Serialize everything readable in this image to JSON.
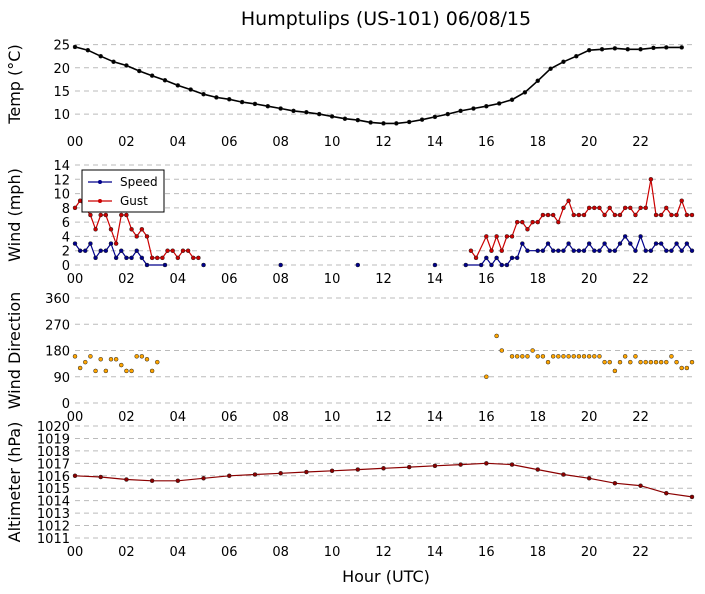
{
  "figure": {
    "title": "Humptulips (US-101) 06/08/15",
    "xlabel": "Hour (UTC)"
  },
  "x_ticks": [
    "00",
    "02",
    "04",
    "06",
    "08",
    "10",
    "12",
    "14",
    "16",
    "18",
    "20",
    "22"
  ],
  "colors": {
    "temp": "#000000",
    "speed": "#00008b",
    "gust": "#cc0000",
    "direction": "#ffa500",
    "altimeter": "#8b0000",
    "grid": "#bbbbbb"
  },
  "chart_data": [
    {
      "type": "line",
      "title": "Humptulips (US-101) 06/08/15",
      "ylabel": "Temp (°C)",
      "xlabel": "",
      "xlim": [
        0,
        24
      ],
      "ylim": [
        7,
        26
      ],
      "yticks": [
        10,
        15,
        20,
        25
      ],
      "grid": true,
      "series": [
        {
          "points": [
            [
              0,
              24.5
            ],
            [
              0.5,
              23.8
            ],
            [
              1,
              22.5
            ],
            [
              1.5,
              21.3
            ],
            [
              2,
              20.5
            ],
            [
              2.5,
              19.3
            ],
            [
              3,
              18.3
            ],
            [
              3.5,
              17.3
            ],
            [
              4,
              16.2
            ],
            [
              4.5,
              15.3
            ],
            [
              5,
              14.3
            ],
            [
              5.5,
              13.6
            ],
            [
              6,
              13.2
            ],
            [
              6.5,
              12.6
            ],
            [
              7,
              12.2
            ],
            [
              7.5,
              11.7
            ],
            [
              8,
              11.2
            ],
            [
              8.5,
              10.7
            ],
            [
              9,
              10.4
            ],
            [
              9.5,
              10.0
            ],
            [
              10,
              9.5
            ],
            [
              10.5,
              9.0
            ],
            [
              11,
              8.7
            ],
            [
              11.5,
              8.2
            ],
            [
              12,
              8.0
            ],
            [
              12.5,
              8.0
            ],
            [
              13,
              8.3
            ],
            [
              13.5,
              8.8
            ],
            [
              14,
              9.4
            ],
            [
              14.5,
              10.0
            ],
            [
              15,
              10.7
            ],
            [
              15.5,
              11.2
            ],
            [
              16,
              11.7
            ],
            [
              16.5,
              12.3
            ],
            [
              17,
              13.1
            ],
            [
              17.5,
              14.7
            ],
            [
              18,
              17.2
            ],
            [
              18.5,
              19.8
            ],
            [
              19,
              21.3
            ],
            [
              19.5,
              22.5
            ],
            [
              20,
              23.8
            ],
            [
              20.5,
              24.0
            ],
            [
              21,
              24.2
            ],
            [
              21.5,
              24.0
            ],
            [
              22,
              24.0
            ],
            [
              22.5,
              24.3
            ],
            [
              23,
              24.4
            ],
            [
              23.6,
              24.4
            ]
          ]
        }
      ]
    },
    {
      "type": "line",
      "ylabel": "Wind (mph)",
      "xlim": [
        0,
        24
      ],
      "ylim": [
        0,
        14
      ],
      "yticks": [
        0,
        2,
        4,
        6,
        8,
        10,
        12,
        14
      ],
      "grid": true,
      "legend": "top-left",
      "series": [
        {
          "name": "Speed",
          "points": [
            [
              0,
              3
            ],
            [
              0.2,
              2
            ],
            [
              0.4,
              2
            ],
            [
              0.6,
              3
            ],
            [
              0.8,
              1
            ],
            [
              1,
              2
            ],
            [
              1.2,
              2
            ],
            [
              1.4,
              3
            ],
            [
              1.6,
              1
            ],
            [
              1.8,
              2
            ],
            [
              2,
              1
            ],
            [
              2.2,
              1
            ],
            [
              2.4,
              2
            ],
            [
              2.6,
              1
            ],
            [
              2.8,
              0
            ],
            [
              3.5,
              0
            ],
            [
              5,
              0
            ],
            [
              8,
              0
            ],
            [
              11,
              0
            ],
            [
              14,
              0
            ],
            [
              15.2,
              0
            ],
            [
              15.8,
              0
            ],
            [
              16,
              1
            ],
            [
              16.2,
              0
            ],
            [
              16.4,
              1
            ],
            [
              16.6,
              0
            ],
            [
              16.8,
              0
            ],
            [
              17,
              1
            ],
            [
              17.2,
              1
            ],
            [
              17.4,
              3
            ],
            [
              17.6,
              2
            ],
            [
              18,
              2
            ],
            [
              18.2,
              2
            ],
            [
              18.4,
              3
            ],
            [
              18.6,
              2
            ],
            [
              18.8,
              2
            ],
            [
              19,
              2
            ],
            [
              19.2,
              3
            ],
            [
              19.4,
              2
            ],
            [
              19.6,
              2
            ],
            [
              19.8,
              2
            ],
            [
              20,
              3
            ],
            [
              20.2,
              2
            ],
            [
              20.4,
              2
            ],
            [
              20.6,
              3
            ],
            [
              20.8,
              2
            ],
            [
              21,
              2
            ],
            [
              21.2,
              3
            ],
            [
              21.4,
              4
            ],
            [
              21.6,
              3
            ],
            [
              21.8,
              2
            ],
            [
              22,
              4
            ],
            [
              22.2,
              2
            ],
            [
              22.4,
              2
            ],
            [
              22.6,
              3
            ],
            [
              22.8,
              3
            ],
            [
              23,
              2
            ],
            [
              23.2,
              2
            ],
            [
              23.4,
              3
            ],
            [
              23.6,
              2
            ],
            [
              23.8,
              3
            ],
            [
              24,
              2
            ]
          ]
        },
        {
          "name": "Gust",
          "points": [
            [
              0,
              8
            ],
            [
              0.2,
              9
            ],
            [
              0.4,
              8
            ],
            [
              0.6,
              7
            ],
            [
              0.8,
              5
            ],
            [
              1,
              7
            ],
            [
              1.2,
              7
            ],
            [
              1.4,
              5
            ],
            [
              1.6,
              3
            ],
            [
              1.8,
              7
            ],
            [
              2,
              7
            ],
            [
              2.2,
              5
            ],
            [
              2.4,
              4
            ],
            [
              2.6,
              5
            ],
            [
              2.8,
              4
            ],
            [
              3,
              1
            ],
            [
              3.2,
              1
            ],
            [
              3.4,
              1
            ],
            [
              3.6,
              2
            ],
            [
              3.8,
              2
            ],
            [
              4,
              1
            ],
            [
              4.2,
              2
            ],
            [
              4.4,
              2
            ],
            [
              4.6,
              1
            ],
            [
              4.8,
              1
            ],
            [
              15.4,
              2
            ],
            [
              15.6,
              1
            ],
            [
              16,
              4
            ],
            [
              16.2,
              2
            ],
            [
              16.4,
              4
            ],
            [
              16.6,
              2
            ],
            [
              16.8,
              4
            ],
            [
              17,
              4
            ],
            [
              17.2,
              6
            ],
            [
              17.4,
              6
            ],
            [
              17.6,
              5
            ],
            [
              17.8,
              6
            ],
            [
              18,
              6
            ],
            [
              18.2,
              7
            ],
            [
              18.4,
              7
            ],
            [
              18.6,
              7
            ],
            [
              18.8,
              6
            ],
            [
              19,
              8
            ],
            [
              19.2,
              9
            ],
            [
              19.4,
              7
            ],
            [
              19.6,
              7
            ],
            [
              19.8,
              7
            ],
            [
              20,
              8
            ],
            [
              20.2,
              8
            ],
            [
              20.4,
              8
            ],
            [
              20.6,
              7
            ],
            [
              20.8,
              8
            ],
            [
              21,
              7
            ],
            [
              21.2,
              7
            ],
            [
              21.4,
              8
            ],
            [
              21.6,
              8
            ],
            [
              21.8,
              7
            ],
            [
              22,
              8
            ],
            [
              22.2,
              8
            ],
            [
              22.4,
              12
            ],
            [
              22.6,
              7
            ],
            [
              22.8,
              7
            ],
            [
              23,
              8
            ],
            [
              23.2,
              7
            ],
            [
              23.4,
              7
            ],
            [
              23.6,
              9
            ],
            [
              23.8,
              7
            ],
            [
              24,
              7
            ]
          ]
        }
      ]
    },
    {
      "type": "scatter",
      "ylabel": "Wind Direction",
      "xlim": [
        0,
        24
      ],
      "ylim": [
        0,
        360
      ],
      "yticks": [
        0,
        90,
        180,
        270,
        360
      ],
      "grid": true,
      "series": [
        {
          "points": [
            [
              0,
              160
            ],
            [
              0.2,
              120
            ],
            [
              0.4,
              140
            ],
            [
              0.6,
              160
            ],
            [
              0.8,
              110
            ],
            [
              1,
              150
            ],
            [
              1.2,
              110
            ],
            [
              1.4,
              150
            ],
            [
              1.6,
              150
            ],
            [
              1.8,
              130
            ],
            [
              2,
              110
            ],
            [
              2.2,
              110
            ],
            [
              2.4,
              160
            ],
            [
              2.6,
              160
            ],
            [
              2.8,
              150
            ],
            [
              3,
              110
            ],
            [
              3.2,
              140
            ],
            [
              16,
              90
            ],
            [
              16.4,
              230
            ],
            [
              16.6,
              180
            ],
            [
              17,
              160
            ],
            [
              17.2,
              160
            ],
            [
              17.4,
              160
            ],
            [
              17.6,
              160
            ],
            [
              17.8,
              180
            ],
            [
              18,
              160
            ],
            [
              18.2,
              160
            ],
            [
              18.4,
              140
            ],
            [
              18.6,
              160
            ],
            [
              18.8,
              160
            ],
            [
              19,
              160
            ],
            [
              19.2,
              160
            ],
            [
              19.4,
              160
            ],
            [
              19.6,
              160
            ],
            [
              19.8,
              160
            ],
            [
              20,
              160
            ],
            [
              20.2,
              160
            ],
            [
              20.4,
              160
            ],
            [
              20.6,
              140
            ],
            [
              20.8,
              140
            ],
            [
              21,
              110
            ],
            [
              21.2,
              140
            ],
            [
              21.4,
              160
            ],
            [
              21.6,
              140
            ],
            [
              21.8,
              160
            ],
            [
              22,
              140
            ],
            [
              22.2,
              140
            ],
            [
              22.4,
              140
            ],
            [
              22.6,
              140
            ],
            [
              22.8,
              140
            ],
            [
              23,
              140
            ],
            [
              23.2,
              160
            ],
            [
              23.4,
              140
            ],
            [
              23.6,
              120
            ],
            [
              23.8,
              120
            ],
            [
              24,
              140
            ]
          ]
        }
      ]
    },
    {
      "type": "line",
      "ylabel": "Altimeter (hPa)",
      "xlabel": "Hour (UTC)",
      "xlim": [
        0,
        24
      ],
      "ylim": [
        1011,
        1020
      ],
      "yticks": [
        1011,
        1012,
        1013,
        1014,
        1015,
        1016,
        1017,
        1018,
        1019,
        1020
      ],
      "grid": true,
      "series": [
        {
          "points": [
            [
              0,
              1016.0
            ],
            [
              1,
              1015.9
            ],
            [
              2,
              1015.7
            ],
            [
              3,
              1015.6
            ],
            [
              4,
              1015.6
            ],
            [
              5,
              1015.8
            ],
            [
              6,
              1016.0
            ],
            [
              7,
              1016.1
            ],
            [
              8,
              1016.2
            ],
            [
              9,
              1016.3
            ],
            [
              10,
              1016.4
            ],
            [
              11,
              1016.5
            ],
            [
              12,
              1016.6
            ],
            [
              13,
              1016.7
            ],
            [
              14,
              1016.8
            ],
            [
              15,
              1016.9
            ],
            [
              16,
              1017.0
            ],
            [
              17,
              1016.9
            ],
            [
              18,
              1016.5
            ],
            [
              19,
              1016.1
            ],
            [
              20,
              1015.8
            ],
            [
              21,
              1015.4
            ],
            [
              22,
              1015.2
            ],
            [
              23,
              1014.6
            ],
            [
              24,
              1014.3
            ]
          ]
        }
      ]
    }
  ]
}
